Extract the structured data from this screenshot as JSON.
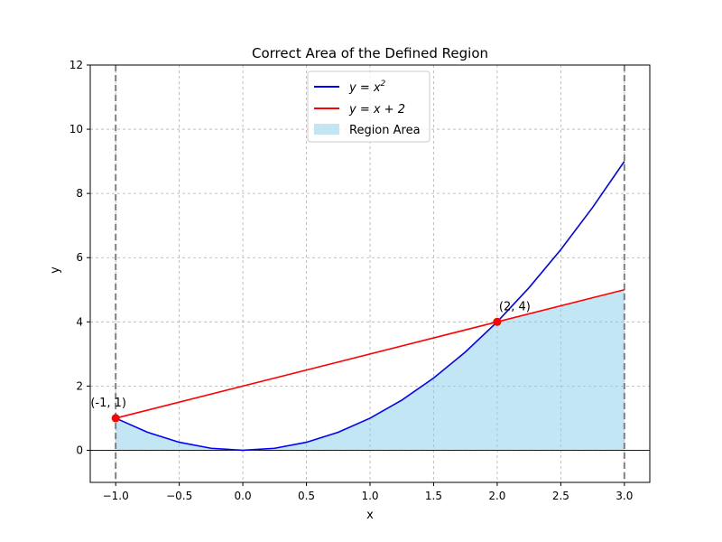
{
  "chart_data": {
    "type": "line",
    "title": "Correct Area of the Defined Region",
    "xlabel": "x",
    "ylabel": "y",
    "xlim": [
      -1.2,
      3.2
    ],
    "ylim": [
      -1,
      12
    ],
    "x_ticks": [
      -1.0,
      -0.5,
      0.0,
      0.5,
      1.0,
      1.5,
      2.0,
      2.5,
      3.0
    ],
    "x_tick_labels": [
      "−1.0",
      "−0.5",
      "0.0",
      "0.5",
      "1.0",
      "1.5",
      "2.0",
      "2.5",
      "3.0"
    ],
    "y_ticks": [
      0,
      2,
      4,
      6,
      8,
      10,
      12
    ],
    "y_tick_labels": [
      "0",
      "2",
      "4",
      "6",
      "8",
      "10",
      "12"
    ],
    "grid": true,
    "grid_style": "dashed",
    "legend_position": "top-center",
    "series": [
      {
        "name": "y = x²",
        "name_main": "y = x",
        "name_sup": "2",
        "color": "#0000ff",
        "x": [
          -1.0,
          -0.75,
          -0.5,
          -0.25,
          0.0,
          0.25,
          0.5,
          0.75,
          1.0,
          1.25,
          1.5,
          1.75,
          2.0,
          2.25,
          2.5,
          2.75,
          3.0
        ],
        "y": [
          1.0,
          0.5625,
          0.25,
          0.0625,
          0.0,
          0.0625,
          0.25,
          0.5625,
          1.0,
          1.5625,
          2.25,
          3.0625,
          4.0,
          5.0625,
          6.25,
          7.5625,
          9.0
        ]
      },
      {
        "name": "y = x + 2",
        "color": "#ff0000",
        "x": [
          -1.0,
          3.0
        ],
        "y": [
          1.0,
          5.0
        ]
      }
    ],
    "region": {
      "name": "Region Area",
      "color": "#87ceeb",
      "opacity": 0.5,
      "x": [
        -1.0,
        -0.75,
        -0.5,
        -0.25,
        0.0,
        0.25,
        0.5,
        0.75,
        1.0,
        1.25,
        1.5,
        1.75,
        2.0,
        2.25,
        2.5,
        2.75,
        3.0
      ],
      "y_upper": [
        1.0,
        0.5625,
        0.25,
        0.0625,
        0.0,
        0.0625,
        0.25,
        0.5625,
        1.0,
        1.5625,
        2.25,
        3.0625,
        4.0,
        4.25,
        4.5,
        4.75,
        5.0
      ],
      "y_lower": 0
    },
    "vertical_lines": [
      {
        "x": -1.0,
        "color": "#808080",
        "style": "dashed"
      },
      {
        "x": 3.0,
        "color": "#808080",
        "style": "dashed"
      }
    ],
    "baseline_y": 0,
    "points": [
      {
        "x": -1,
        "y": 1,
        "label": "(-1, 1)",
        "color": "#ff0000"
      },
      {
        "x": 2,
        "y": 4,
        "label": "(2, 4)",
        "color": "#ff0000"
      }
    ]
  }
}
